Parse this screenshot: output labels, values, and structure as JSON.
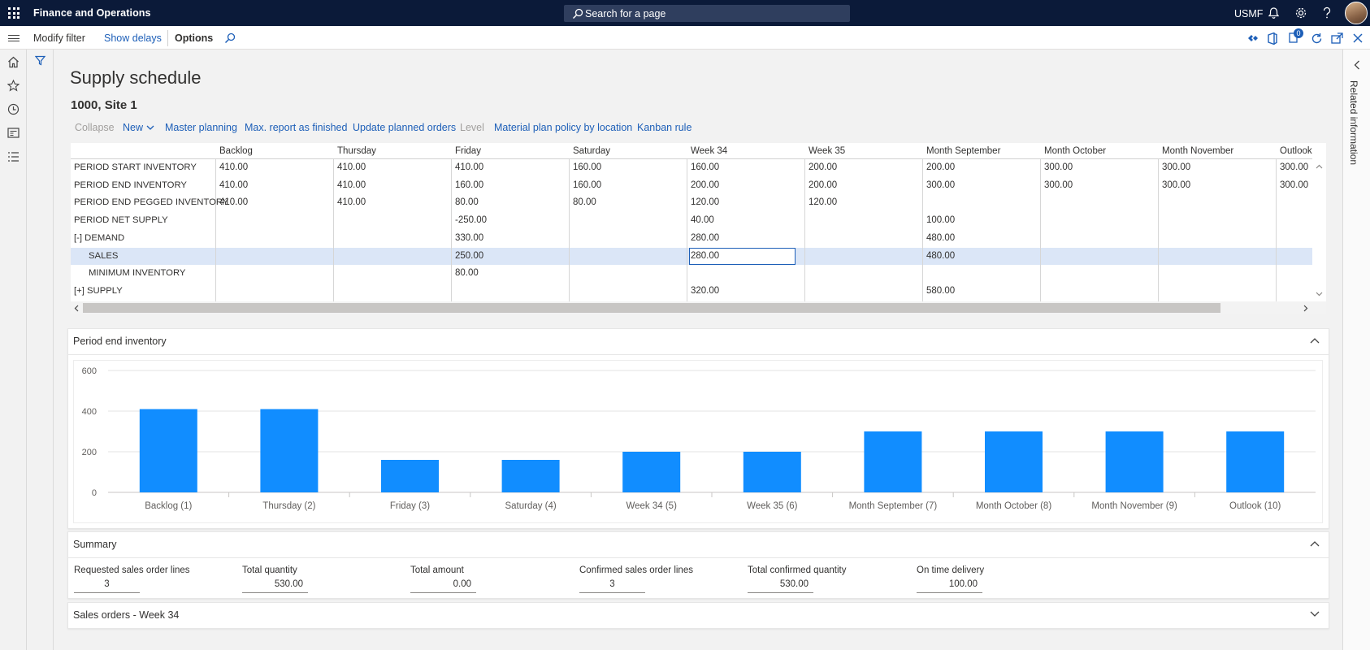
{
  "app": {
    "name": "Finance and Operations",
    "search_placeholder": "Search for a page",
    "company": "USMF",
    "notification_count": "0"
  },
  "action_bar": {
    "modify_filter": "Modify filter",
    "show_delays": "Show delays",
    "options": "Options"
  },
  "side_panel": {
    "related_information": "Related information"
  },
  "page": {
    "title": "Supply schedule",
    "subtitle": "1000, Site 1"
  },
  "toolbar": {
    "collapse": "Collapse",
    "new": "New",
    "master_planning": "Master planning",
    "max_report": "Max. report as finished",
    "update_planned": "Update planned orders",
    "level": "Level",
    "material_plan": "Material plan policy by location",
    "kanban": "Kanban rule"
  },
  "grid": {
    "columns": [
      "Backlog",
      "Thursday",
      "Friday",
      "Saturday",
      "Week 34",
      "Week 35",
      "Month September",
      "Month October",
      "Month November",
      "Outlook"
    ],
    "rows": [
      {
        "label": "PERIOD START INVENTORY",
        "values": [
          "410.00",
          "410.00",
          "410.00",
          "160.00",
          "160.00",
          "200.00",
          "200.00",
          "300.00",
          "300.00",
          "300.00"
        ]
      },
      {
        "label": "PERIOD END INVENTORY",
        "values": [
          "410.00",
          "410.00",
          "160.00",
          "160.00",
          "200.00",
          "200.00",
          "300.00",
          "300.00",
          "300.00",
          "300.00"
        ]
      },
      {
        "label": "PERIOD END PEGGED INVENTORY",
        "values": [
          "410.00",
          "410.00",
          "80.00",
          "80.00",
          "120.00",
          "120.00",
          "",
          "",
          "",
          ""
        ]
      },
      {
        "label": "PERIOD NET SUPPLY",
        "values": [
          "",
          "",
          "-250.00",
          "",
          "40.00",
          "",
          "100.00",
          "",
          "",
          ""
        ]
      },
      {
        "label": "[-] DEMAND",
        "values": [
          "",
          "",
          "330.00",
          "",
          "280.00",
          "",
          "480.00",
          "",
          "",
          ""
        ]
      },
      {
        "label": "SALES",
        "values": [
          "",
          "",
          "250.00",
          "",
          "280.00",
          "",
          "480.00",
          "",
          "",
          ""
        ]
      },
      {
        "label": "MINIMUM INVENTORY",
        "values": [
          "",
          "",
          "80.00",
          "",
          "",
          "",
          "",
          "",
          "",
          ""
        ]
      },
      {
        "label": "[+] SUPPLY",
        "values": [
          "",
          "",
          "",
          "",
          "320.00",
          "",
          "580.00",
          "",
          "",
          ""
        ]
      }
    ]
  },
  "chart_section": {
    "title": "Period end inventory"
  },
  "chart_data": {
    "type": "bar",
    "categories": [
      "Backlog (1)",
      "Thursday (2)",
      "Friday (3)",
      "Saturday (4)",
      "Week 34 (5)",
      "Week 35 (6)",
      "Month September (7)",
      "Month October (8)",
      "Month November (9)",
      "Outlook (10)"
    ],
    "values": [
      410,
      410,
      160,
      160,
      200,
      200,
      300,
      300,
      300,
      300
    ],
    "yticks": [
      "0",
      "200",
      "400",
      "600"
    ],
    "ylim": [
      0,
      600
    ],
    "grid": true,
    "color": "#118dff"
  },
  "summary": {
    "title": "Summary",
    "fields": [
      {
        "label": "Requested sales order lines",
        "value": "3",
        "align": "center"
      },
      {
        "label": "Total quantity",
        "value": "530.00",
        "align": "right"
      },
      {
        "label": "Total amount",
        "value": "0.00",
        "align": "right"
      },
      {
        "label": "Confirmed sales order lines",
        "value": "3",
        "align": "center"
      },
      {
        "label": "Total confirmed quantity",
        "value": "530.00",
        "align": "right"
      },
      {
        "label": "On time delivery",
        "value": "100.00",
        "align": "right"
      }
    ]
  },
  "sales_orders": {
    "title": "Sales orders - Week 34"
  }
}
